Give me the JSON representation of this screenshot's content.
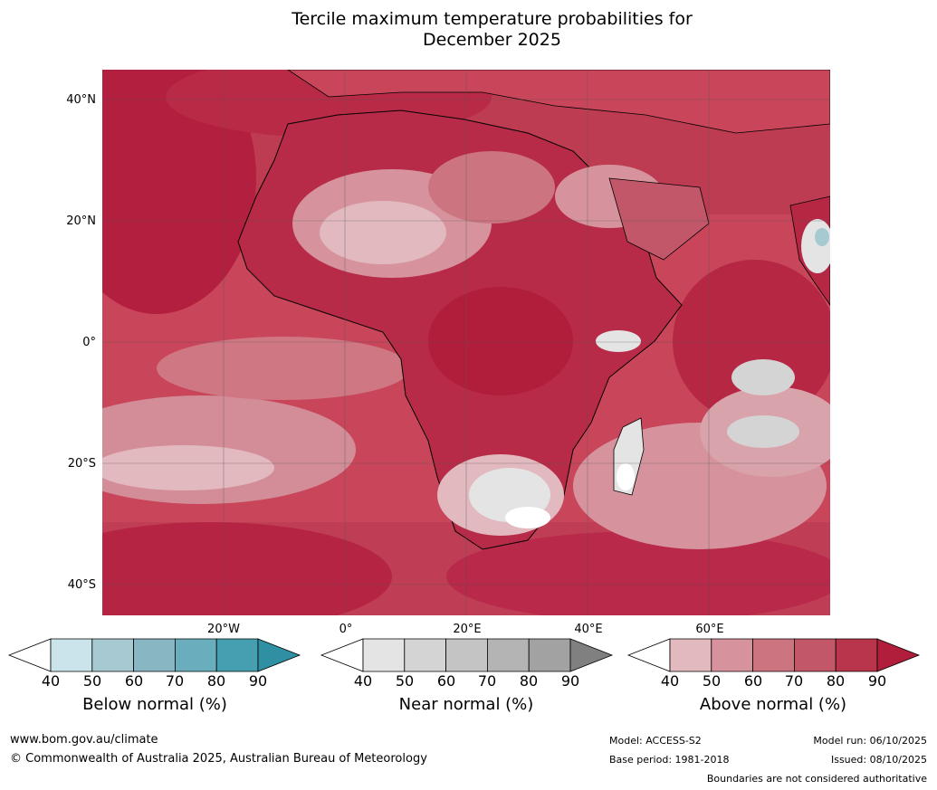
{
  "title": {
    "line1": "Tercile maximum temperature probabilities for",
    "line2": "December 2025"
  },
  "map": {
    "description_icon": "africa-map-icon",
    "lat_labels": [
      "40°N",
      "20°N",
      "0°",
      "20°S",
      "40°S"
    ],
    "lon_labels": [
      "20°W",
      "0°",
      "20°E",
      "40°E",
      "60°E"
    ]
  },
  "legends": [
    {
      "title": "Below normal (%)",
      "ticks": [
        "40",
        "50",
        "60",
        "70",
        "80",
        "90"
      ],
      "colors": [
        "#ffffff",
        "#cbe3ea",
        "#a7c9d1",
        "#88b7c3",
        "#6aaebd",
        "#459fb0",
        "#2f90a3"
      ]
    },
    {
      "title": "Near normal (%)",
      "ticks": [
        "40",
        "50",
        "60",
        "70",
        "80",
        "90"
      ],
      "colors": [
        "#ffffff",
        "#e4e4e4",
        "#d4d4d4",
        "#c4c4c4",
        "#b4b4b4",
        "#a2a2a2",
        "#808080"
      ]
    },
    {
      "title": "Above normal (%)",
      "ticks": [
        "40",
        "50",
        "60",
        "70",
        "80",
        "90"
      ],
      "colors": [
        "#ffffff",
        "#e2b9bf",
        "#d6939d",
        "#cc7480",
        "#c25769",
        "#b9354b",
        "#b01e3c"
      ]
    }
  ],
  "footer": {
    "website": "www.bom.gov.au/climate",
    "copyright": "© Commonwealth of Australia 2025, Australian Bureau of Meteorology",
    "model": "Model: ACCESS-S2",
    "base_period": "Base period: 1981-2018",
    "model_run": "Model run: 06/10/2025",
    "issued": "Issued: 08/10/2025",
    "disclaimer": "Boundaries are not considered authoritative"
  }
}
